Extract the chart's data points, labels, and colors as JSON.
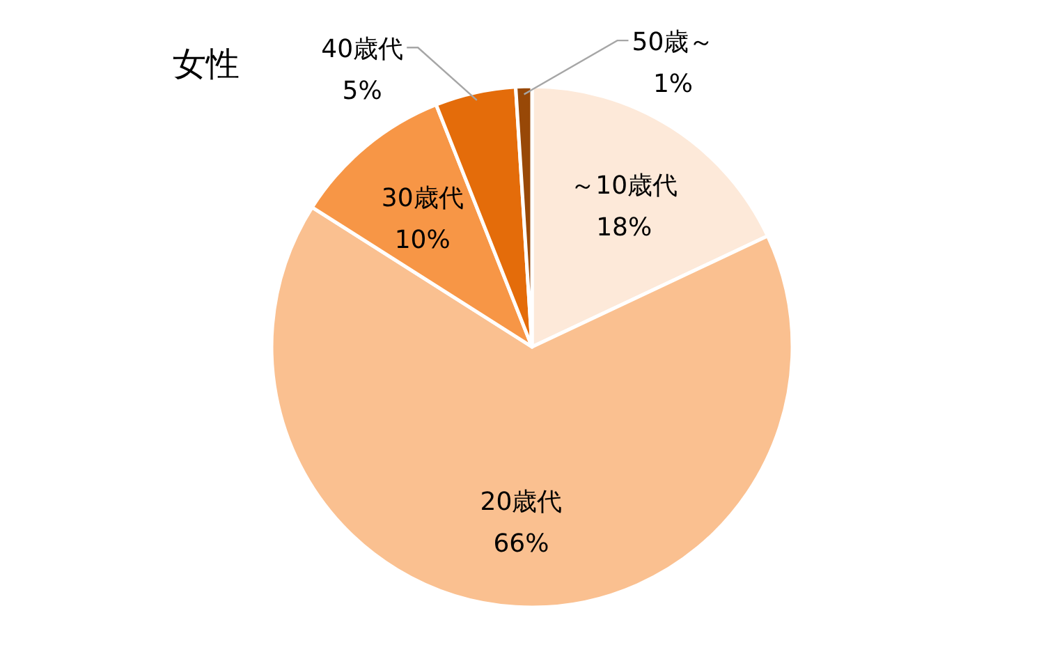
{
  "chart_data": {
    "type": "pie",
    "title": "女性",
    "categories": [
      "～10歳代",
      "20歳代",
      "30歳代",
      "40歳代",
      "50歳～"
    ],
    "values": [
      18,
      66,
      10,
      5,
      1
    ],
    "value_labels": [
      "18%",
      "66%",
      "10%",
      "5%",
      "1%"
    ],
    "colors": [
      "#fde9d9",
      "#fac090",
      "#f79646",
      "#e46c0a",
      "#984807"
    ]
  }
}
